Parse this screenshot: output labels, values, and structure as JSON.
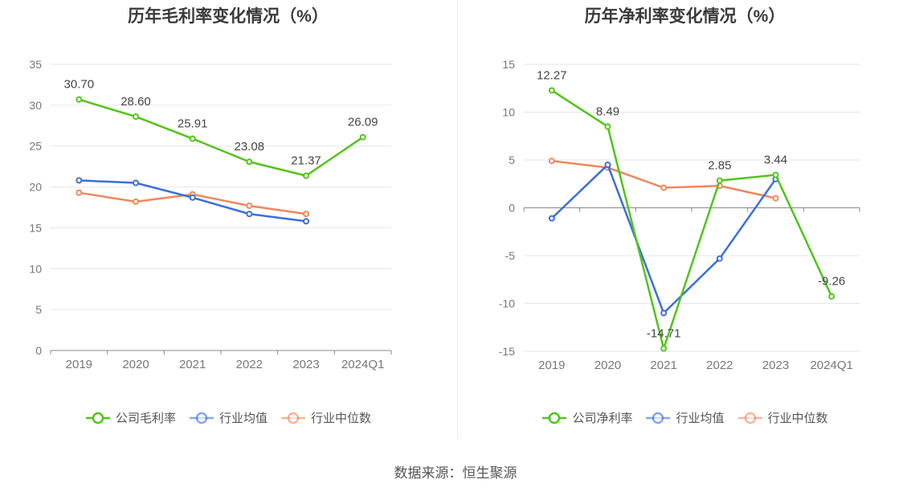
{
  "source_text": "数据来源：恒生聚源",
  "chart_data": [
    {
      "type": "line",
      "title": "历年毛利率变化情况（%）",
      "categories": [
        "2019",
        "2020",
        "2021",
        "2022",
        "2023",
        "2024Q1"
      ],
      "ylim": [
        0,
        35
      ],
      "yticks": [
        0,
        5,
        10,
        15,
        20,
        25,
        30,
        35
      ],
      "grid": true,
      "legend_position": "bottom",
      "series": [
        {
          "name": "公司毛利率",
          "color": "#52c41a",
          "values": [
            30.7,
            28.6,
            25.91,
            23.08,
            21.37,
            26.09
          ],
          "labels": [
            "30.70",
            "28.60",
            "25.91",
            "23.08",
            "21.37",
            "26.09"
          ]
        },
        {
          "name": "行业均值",
          "color": "#3a6fd8",
          "values": [
            20.8,
            20.5,
            18.7,
            16.7,
            15.8,
            null
          ]
        },
        {
          "name": "行业中位数",
          "color": "#f0875a",
          "values": [
            19.3,
            18.2,
            19.1,
            17.7,
            16.7,
            null
          ]
        }
      ]
    },
    {
      "type": "line",
      "title": "历年净利率变化情况（%）",
      "categories": [
        "2019",
        "2020",
        "2021",
        "2022",
        "2023",
        "2024Q1"
      ],
      "ylim": [
        -15,
        15
      ],
      "yticks": [
        -15,
        -10,
        -5,
        0,
        5,
        10,
        15
      ],
      "grid": true,
      "legend_position": "bottom",
      "series": [
        {
          "name": "公司净利率",
          "color": "#52c41a",
          "values": [
            12.27,
            8.49,
            -14.71,
            2.85,
            3.44,
            -9.26
          ],
          "labels": [
            "12.27",
            "8.49",
            "-14.71",
            "2.85",
            "3.44",
            "-9.26"
          ]
        },
        {
          "name": "行业均值",
          "color": "#3a6fd8",
          "values": [
            -1.1,
            4.5,
            -11.0,
            -5.3,
            3.0,
            null
          ]
        },
        {
          "name": "行业中位数",
          "color": "#f0875a",
          "values": [
            4.9,
            4.2,
            2.1,
            2.3,
            1.0,
            null
          ]
        }
      ]
    }
  ]
}
